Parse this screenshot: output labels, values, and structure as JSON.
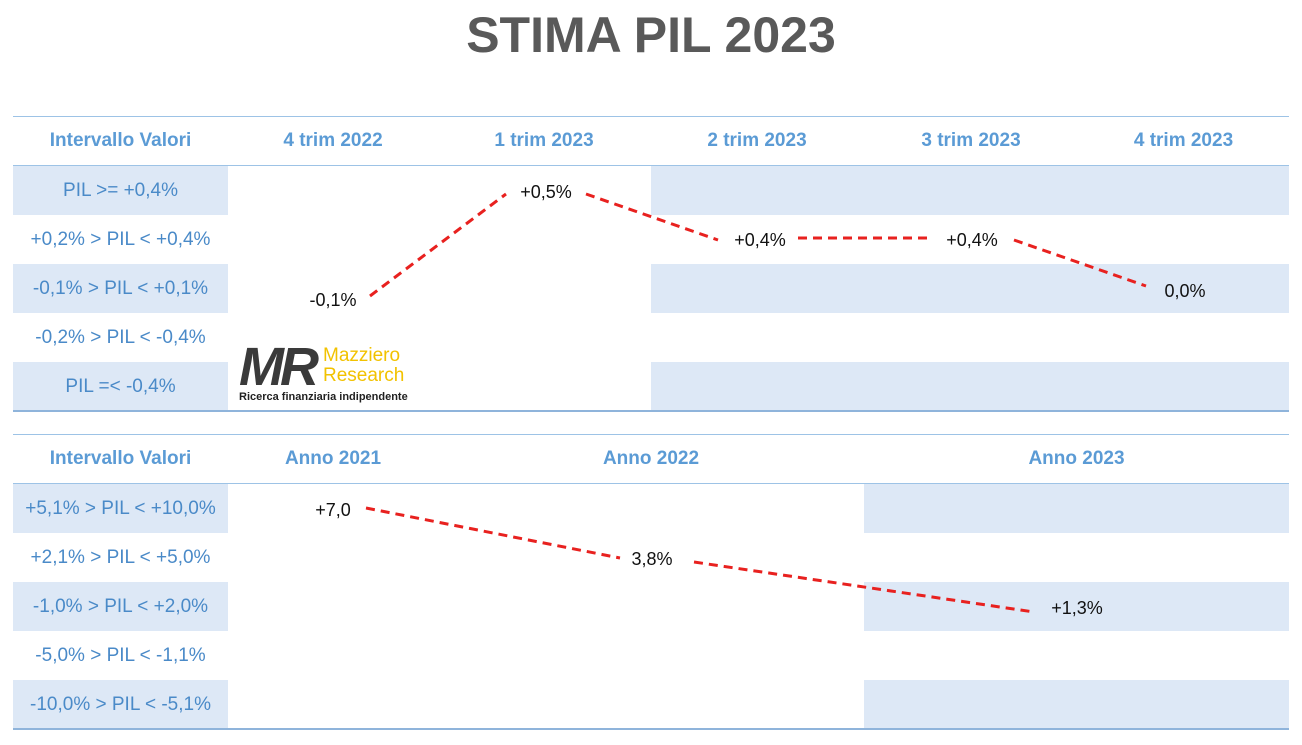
{
  "title": "STIMA PIL 2023",
  "chart_data": [
    {
      "type": "line",
      "columns_header": "Intervallo Valori",
      "categories": [
        "4 trim 2022",
        "1 trim 2023",
        "2 trim 2023",
        "3 trim 2023",
        "4 trim 2023"
      ],
      "ranges": [
        "PIL >= +0,4%",
        "+0,2% > PIL < +0,4%",
        "-0,1% > PIL < +0,1%",
        "-0,2% > PIL < -0,4%",
        "PIL =< -0,4%"
      ],
      "values": [
        -0.1,
        0.5,
        0.4,
        0.4,
        0.0
      ],
      "value_labels": [
        "-0,1%",
        "+0,5%",
        "+0,4%",
        "+0,4%",
        "0,0%"
      ],
      "line_color": "#e8211f",
      "line_style": "dashed"
    },
    {
      "type": "line",
      "columns_header": "Intervallo Valori",
      "categories": [
        "Anno 2021",
        "Anno 2022",
        "Anno 2023"
      ],
      "ranges": [
        "+5,1% > PIL < +10,0%",
        "+2,1% > PIL < +5,0%",
        "-1,0% > PIL < +2,0%",
        "-5,0% > PIL < -1,1%",
        "-10,0% > PIL < -5,1%"
      ],
      "values": [
        7.0,
        3.8,
        1.3
      ],
      "value_labels": [
        "+7,0",
        "3,8%",
        "+1,3%"
      ],
      "line_color": "#e8211f",
      "line_style": "dashed"
    }
  ],
  "logo": {
    "monogram": "MR",
    "name_line1": "Mazziero",
    "name_line2": "Research",
    "tagline": "Ricerca finanziaria indipendente"
  },
  "colors": {
    "band": "#dde8f6",
    "header_text": "#5b9bd5",
    "range_text": "#4a8ac8",
    "title": "#595959"
  }
}
